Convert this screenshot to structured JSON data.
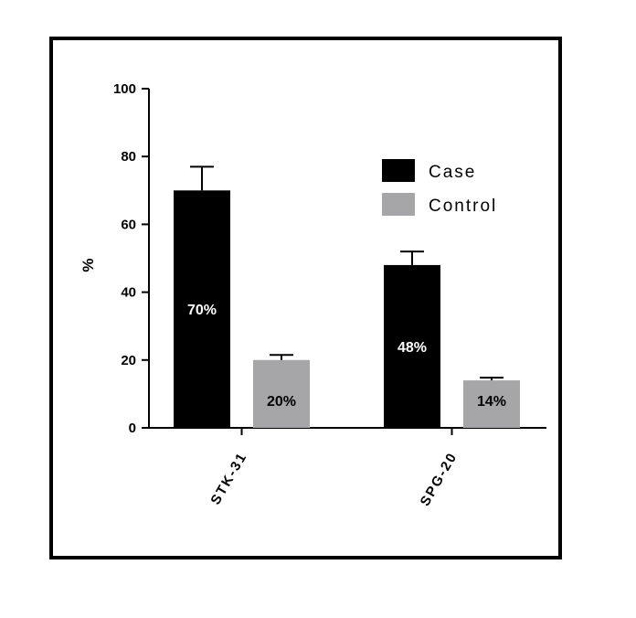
{
  "chart_data": {
    "type": "bar",
    "categories": [
      "STK-31",
      "SPG-20"
    ],
    "series": [
      {
        "name": "Case",
        "values": [
          70,
          48
        ],
        "errors": [
          7,
          4
        ],
        "labels": [
          "70%",
          "48%"
        ],
        "color": "#000000",
        "label_color": "#ffffff"
      },
      {
        "name": "Control",
        "values": [
          20,
          14
        ],
        "errors": [
          1.5,
          0.8
        ],
        "labels": [
          "20%",
          "14%"
        ],
        "color": "#a6a6a8",
        "label_color": "#000000"
      }
    ],
    "ylabel": "%",
    "xlabel": "",
    "ylim": [
      0,
      100
    ],
    "yticks": [
      "0",
      "20",
      "40",
      "60",
      "80",
      "100"
    ],
    "grid": false,
    "legend_position": "top-right"
  }
}
